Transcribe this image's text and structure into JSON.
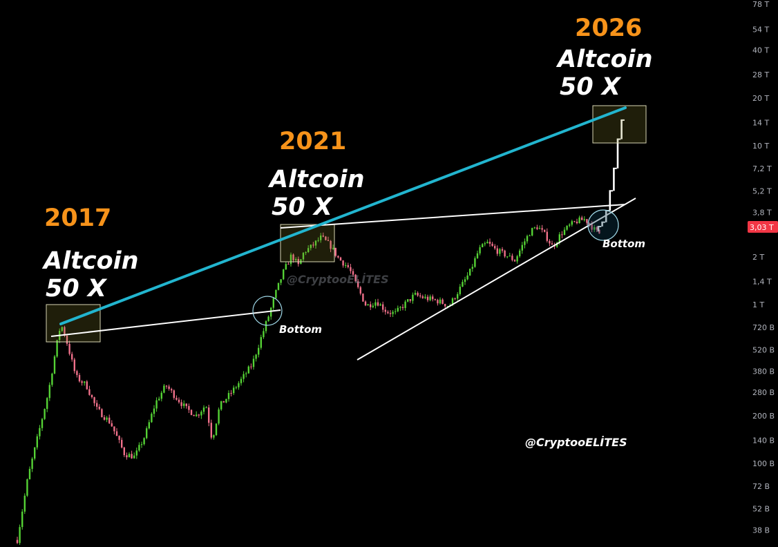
{
  "colors": {
    "background": "#000000",
    "up": "#55d235",
    "down": "#f0708a",
    "trend": "#ffffff",
    "resistance": "#22b5cf",
    "year": "#f7931a",
    "price_tag": "#f23645"
  },
  "chart_data": {
    "type": "candlestick",
    "title": "",
    "xlabel": "",
    "ylabel": "",
    "y_scale": "log",
    "ylim": [
      "33 B",
      "78 T"
    ],
    "y_tick_labels": [
      "78 T",
      "54 T",
      "40 T",
      "28 T",
      "20 T",
      "14 T",
      "10 T",
      "7,2 T",
      "5,2 T",
      "3,8 T",
      "2 T",
      "1,4 T",
      "1 T",
      "720 B",
      "520 B",
      "380 B",
      "280 B",
      "200 B",
      "140 B",
      "100 B",
      "72 B",
      "52 B",
      "38 B"
    ],
    "y_tick_values": [
      78000,
      54000,
      40000,
      28000,
      20000,
      14000,
      10000,
      7200,
      5200,
      3800,
      2000,
      1400,
      1000,
      720,
      520,
      380,
      280,
      200,
      140,
      100,
      72,
      52,
      38
    ],
    "value_unit": "B",
    "current_price": {
      "label": "3,03 T",
      "value": 3030
    },
    "grid": false,
    "annotations": [
      {
        "year": "2017",
        "text_line1": "Altcoin",
        "text_line2": "50 X"
      },
      {
        "year": "2021",
        "text_line1": "Altcoin",
        "text_line2": "50 X"
      },
      {
        "year": "2026",
        "text_line1": "Altcoin",
        "text_line2": "50 X"
      }
    ],
    "bottom_labels": [
      "Bottom",
      "Bottom"
    ],
    "projection_levels": [
      3100,
      3300,
      3900,
      5200,
      7200,
      11000,
      14500
    ]
  },
  "watermarks": {
    "main": "@CryptooELİTES",
    "faint": "@CryptooELİTES"
  }
}
